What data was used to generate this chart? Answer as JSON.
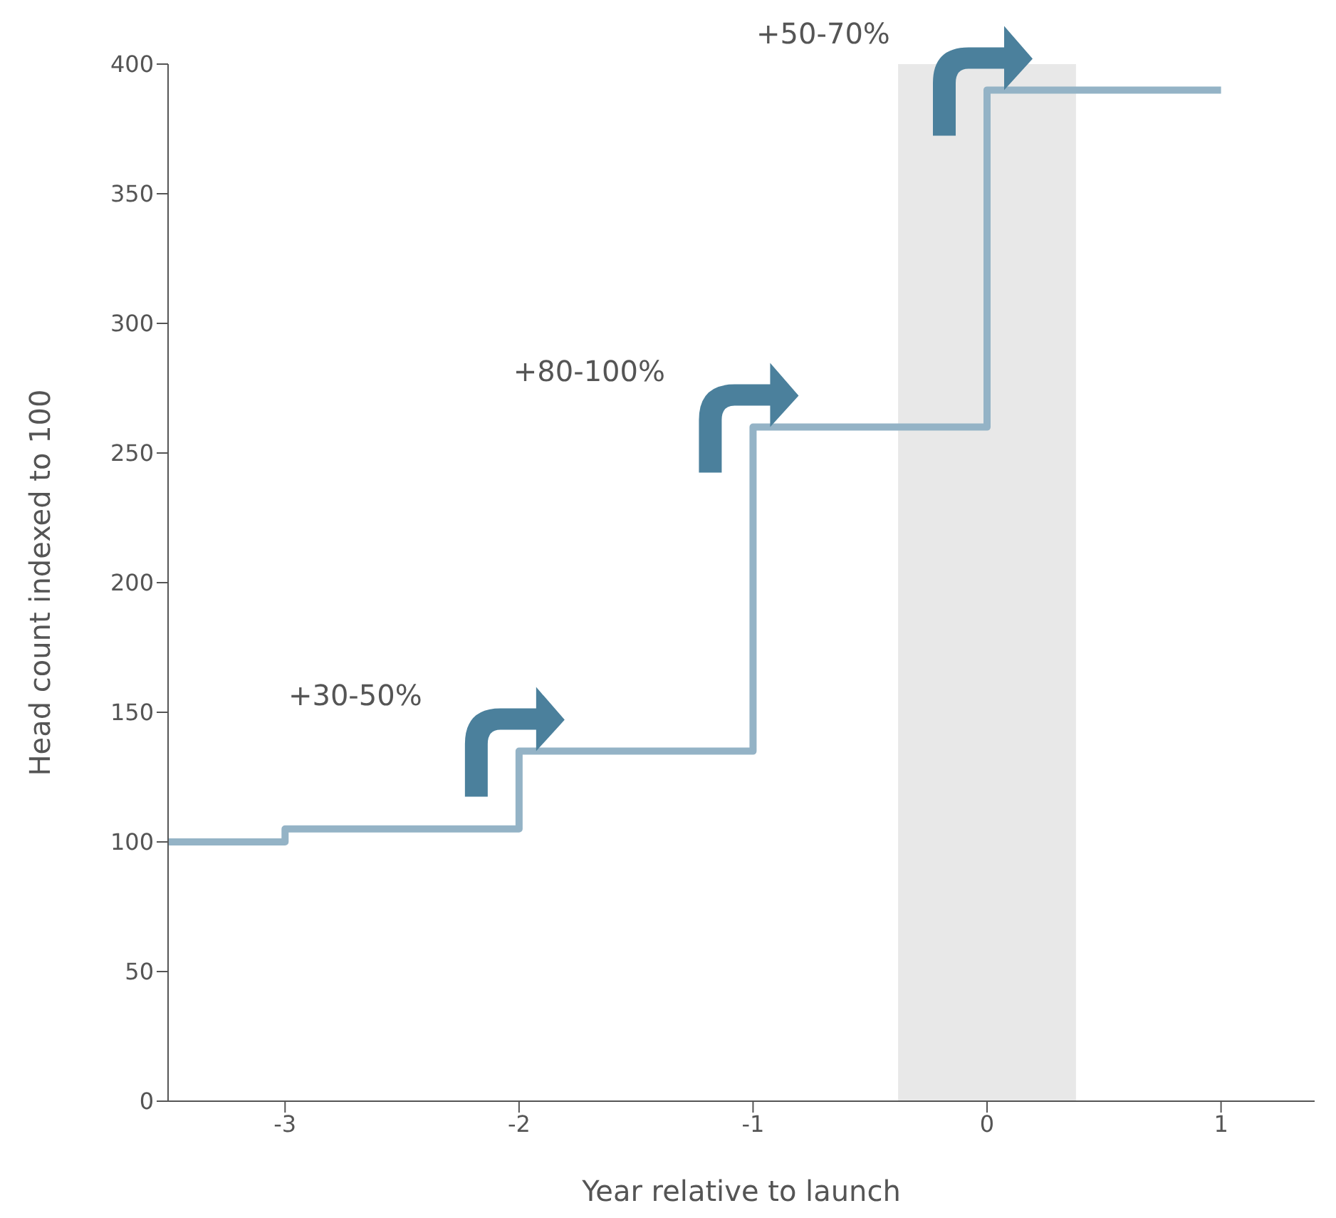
{
  "chart_data": {
    "type": "step",
    "xlabel": "Year relative to launch",
    "ylabel": "Head count indexed to 100",
    "x": [
      -3.5,
      -3,
      -2,
      -1,
      0,
      1
    ],
    "series": [
      {
        "color": "#94b3c6",
        "values": [
          100,
          105,
          135,
          260,
          390,
          390
        ]
      }
    ],
    "xlim": [
      -3.5,
      1.4
    ],
    "xticks": [
      -3,
      -2,
      -1,
      0,
      1
    ],
    "ylim": [
      0,
      400
    ],
    "yticks": [
      0,
      50,
      100,
      150,
      200,
      250,
      300,
      350,
      400
    ],
    "bands": [
      {
        "axis": "x",
        "from": -0.38,
        "to": 0.38,
        "color": "#e8e8e8"
      }
    ],
    "annotations": [
      "+30-50%",
      "+80-100%",
      "+50-70%"
    ]
  }
}
